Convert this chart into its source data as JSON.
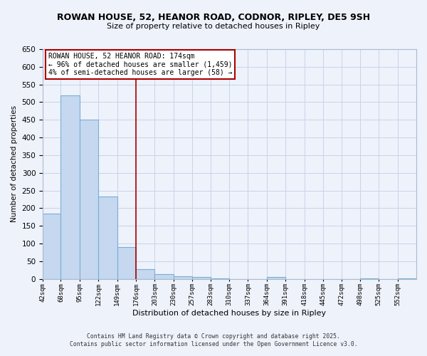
{
  "title": "ROWAN HOUSE, 52, HEANOR ROAD, CODNOR, RIPLEY, DE5 9SH",
  "subtitle": "Size of property relative to detached houses in Ripley",
  "xlabel": "Distribution of detached houses by size in Ripley",
  "ylabel": "Number of detached properties",
  "bar_edges": [
    42,
    68,
    95,
    122,
    149,
    176,
    203,
    230,
    257,
    283,
    310,
    337,
    364,
    391,
    418,
    445,
    472,
    498,
    525,
    552,
    579
  ],
  "bar_heights": [
    185,
    520,
    450,
    232,
    90,
    28,
    14,
    8,
    5,
    2,
    0,
    0,
    6,
    0,
    0,
    0,
    0,
    1,
    0,
    2
  ],
  "bar_color": "#c5d8ef",
  "bar_edge_color": "#7aafd4",
  "vline_x": 176,
  "vline_color": "#aa0000",
  "ylim": [
    0,
    650
  ],
  "yticks": [
    0,
    50,
    100,
    150,
    200,
    250,
    300,
    350,
    400,
    450,
    500,
    550,
    600,
    650
  ],
  "annotation_title": "ROWAN HOUSE, 52 HEANOR ROAD: 174sqm",
  "annotation_line1": "← 96% of detached houses are smaller (1,459)",
  "annotation_line2": "4% of semi-detached houses are larger (58) →",
  "footer_line1": "Contains HM Land Registry data © Crown copyright and database right 2025.",
  "footer_line2": "Contains public sector information licensed under the Open Government Licence v3.0.",
  "bg_color": "#eef2fb",
  "grid_color": "#c8d4e8"
}
